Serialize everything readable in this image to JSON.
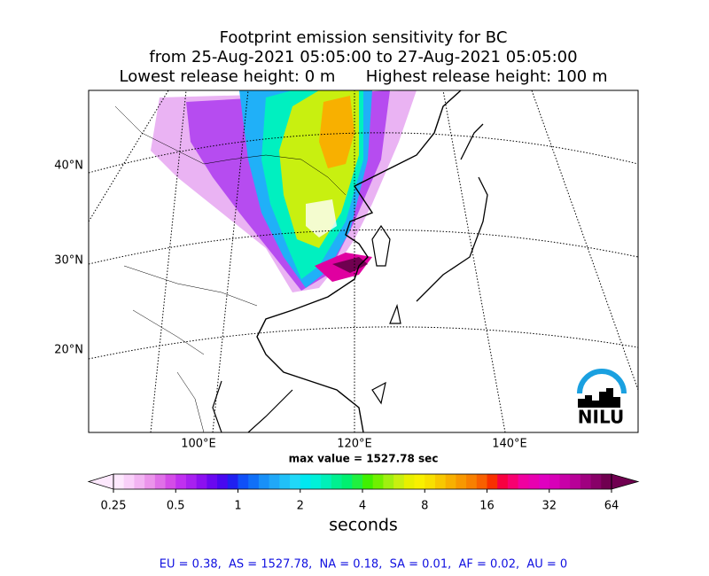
{
  "header": {
    "title_lines": [
      "Footprint emission sensitivity for BC",
      "from 25-Aug-2021 05:05:00 to 27-Aug-2021 05:05:00",
      "Lowest release height: 0 m      Highest release height: 100 m"
    ]
  },
  "map": {
    "lat_labels": [
      "40°N",
      "30°N",
      "20°N"
    ],
    "lon_labels": [
      "100°E",
      "120°E",
      "140°E"
    ],
    "max_value_text": "max value = 1527.78 sec",
    "logo_text": "NILU"
  },
  "colorbar": {
    "ticks": [
      0.25,
      0.5,
      1,
      2,
      4,
      8,
      16,
      32,
      64
    ],
    "label": "seconds",
    "log_scale": true,
    "colors": [
      "#fde8fd",
      "#f9d0f9",
      "#f2b4f2",
      "#eb94eb",
      "#e070e8",
      "#d44ce8",
      "#c030f0",
      "#a820f0",
      "#8c10f0",
      "#6a08f0",
      "#4808f0",
      "#2020f0",
      "#1050f8",
      "#1070f8",
      "#1890f8",
      "#20a8f8",
      "#20c0f8",
      "#20d8f8",
      "#00e8f0",
      "#00f0d8",
      "#00f0b8",
      "#00f090",
      "#00f070",
      "#20f040",
      "#40f000",
      "#70f000",
      "#a0f010",
      "#c8f010",
      "#e8f000",
      "#f8f000",
      "#f8e000",
      "#f8c800",
      "#f8b000",
      "#f89800",
      "#f88000",
      "#f86000",
      "#f83000",
      "#f80040",
      "#f80070",
      "#f000a0",
      "#e800b0",
      "#e000c0",
      "#d800b8",
      "#c800a8",
      "#b80098",
      "#a00080",
      "#880068",
      "#700050"
    ]
  },
  "footer": {
    "text": "EU = 0.38,  AS = 1527.78,  NA = 0.18,  SA = 0.01,  AF = 0.02,  AU = 0"
  }
}
